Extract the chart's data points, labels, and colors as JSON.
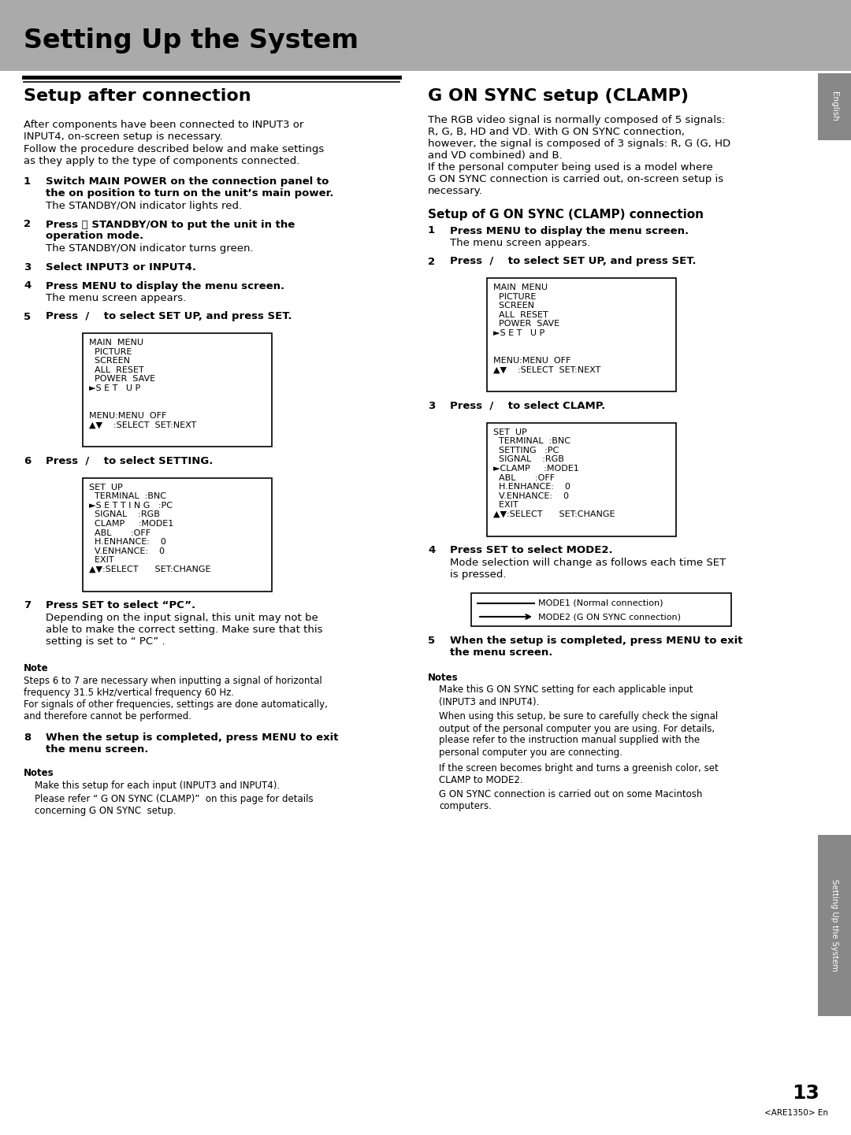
{
  "page_bg": "#ffffff",
  "header_bg": "#aaaaaa",
  "header_text": "Setting Up the System",
  "sidebar_right_text": "English",
  "sidebar_bottom_text": "Setting Up the System",
  "page_number": "13",
  "page_code": "<ARE1350> En",
  "left_section_title": "Setup after connection",
  "left_body1": "After components have been connected to INPUT3 or\nINPUT4, on-screen setup is necessary.",
  "left_body2": "Follow the procedure described below and make settings\nas they apply to the type of components connected.",
  "left_steps": [
    {
      "num": "1",
      "bold": "Switch MAIN POWER on the connection panel to\nthe on position to turn on the unit’s main power.",
      "normal": "The STANDBY/ON indicator lights red."
    },
    {
      "num": "2",
      "bold": "Press ⏻ STANDBY/ON to put the unit in the\noperation mode.",
      "normal": "The STANDBY/ON indicator turns green."
    },
    {
      "num": "3",
      "bold": "Select INPUT3 or INPUT4.",
      "normal": ""
    },
    {
      "num": "4",
      "bold": "Press MENU to display the menu screen.",
      "normal": "The menu screen appears."
    },
    {
      "num": "5",
      "bold": "Press  /    to select SET UP, and press SET.",
      "normal": ""
    }
  ],
  "left_box1": "MAIN  MENU\n  PICTURE\n  SCREEN\n  ALL  RESET\n  POWER  SAVE\n►S E T   U P\n\n\nMENU:MENU  OFF\n▲▼    :SELECT  SET:NEXT",
  "left_step6": {
    "num": "6",
    "bold": "Press  /    to select SETTING.",
    "normal": ""
  },
  "left_box2": "SET  UP\n  TERMINAL  :BNC\n►S E T T I N G   :PC\n  SIGNAL    :RGB\n  CLAMP     :MODE1\n  ABL       :OFF\n  H.ENHANCE:    0\n  V.ENHANCE:    0\n  EXIT\n▲▼:SELECT      SET:CHANGE",
  "left_step7": {
    "num": "7",
    "bold": "Press SET to select “PC”.",
    "normal": "Depending on the input signal, this unit may not be\nable to make the correct setting. Make sure that this\nsetting is set to “ PC” ."
  },
  "left_note_title": "Note",
  "left_note": "Steps 6 to 7 are necessary when inputting a signal of horizontal\nfrequency 31.5 kHz/vertical frequency 60 Hz.\nFor signals of other frequencies, settings are done automatically,\nand therefore cannot be performed.",
  "left_step8": {
    "num": "8",
    "bold": "When the setup is completed, press MENU to exit\nthe menu screen.",
    "normal": ""
  },
  "left_notes_title": "Notes",
  "left_notes_items": [
    "Make this setup for each input (INPUT3 and INPUT4).",
    "Please refer “ G ON SYNC (CLAMP)”  on this page for details\nconcerning G ON SYNC  setup."
  ],
  "right_section_title": "G ON SYNC setup (CLAMP)",
  "right_body": "The RGB video signal is normally composed of 5 signals:\nR, G, B, HD and VD. With G ON SYNC connection,\nhowever, the signal is composed of 3 signals: R, G (G, HD\nand VD combined) and B.\nIf the personal computer being used is a model where\nG ON SYNC connection is carried out, on-screen setup is\nnecessary.",
  "right_subsection_title": "Setup of G ON SYNC (CLAMP) connection",
  "right_step1": {
    "num": "1",
    "bold": "Press MENU to display the menu screen.",
    "normal": "The menu screen appears."
  },
  "right_step2": {
    "num": "2",
    "bold": "Press  /    to select SET UP, and press SET.",
    "normal": ""
  },
  "right_box1": "MAIN  MENU\n  PICTURE\n  SCREEN\n  ALL  RESET\n  POWER  SAVE\n►S E T   U P\n\n\nMENU:MENU  OFF\n▲▼    :SELECT  SET:NEXT",
  "right_step3": {
    "num": "3",
    "bold": "Press  /    to select CLAMP.",
    "normal": ""
  },
  "right_box2": "SET  UP\n  TERMINAL  :BNC\n  SETTING   :PC\n  SIGNAL    :RGB\n►CLAMP     :MODE1\n  ABL       :OFF\n  H.ENHANCE:    0\n  V.ENHANCE:    0\n  EXIT\n▲▼:SELECT      SET:CHANGE",
  "right_step4": {
    "num": "4",
    "bold": "Press SET to select MODE2.",
    "normal": "Mode selection will change as follows each time SET\nis pressed."
  },
  "mode_line1": "MODE1 (Normal connection)",
  "mode_line2": "MODE2 (G ON SYNC connection)",
  "right_step5": {
    "num": "5",
    "bold": "When the setup is completed, press MENU to exit\nthe menu screen.",
    "normal": ""
  },
  "right_notes_title": "Notes",
  "right_notes_items": [
    "Make this G ON SYNC setting for each applicable input\n(INPUT3 and INPUT4).",
    "When using this setup, be sure to carefully check the signal\noutput of the personal computer you are using. For details,\nplease refer to the instruction manual supplied with the\npersonal computer you are connecting.",
    "If the screen becomes bright and turns a greenish color, set\nCLAMP to MODE2.",
    "G ON SYNC connection is carried out on some Macintosh\ncomputers."
  ]
}
